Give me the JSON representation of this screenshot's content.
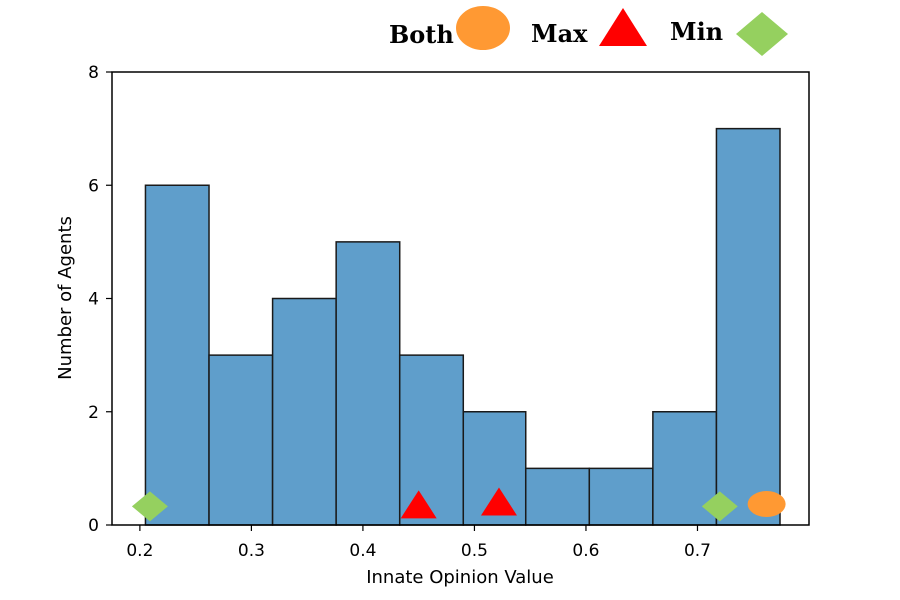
{
  "chart_data": {
    "type": "bar",
    "xlabel": "Innate Opinion Value",
    "ylabel": "Number of Agents",
    "xlim": [
      0.175,
      0.8
    ],
    "ylim": [
      0,
      8
    ],
    "x_ticks": [
      "0.2",
      "0.3",
      "0.4",
      "0.5",
      "0.6",
      "0.7"
    ],
    "y_ticks": [
      "0",
      "2",
      "4",
      "6",
      "8"
    ],
    "grid": false,
    "bar_color": "#5f9ecb",
    "bins": [
      {
        "x0": 0.205,
        "x1": 0.262,
        "count": 6
      },
      {
        "x0": 0.262,
        "x1": 0.319,
        "count": 3
      },
      {
        "x0": 0.319,
        "x1": 0.376,
        "count": 4
      },
      {
        "x0": 0.376,
        "x1": 0.433,
        "count": 5
      },
      {
        "x0": 0.433,
        "x1": 0.49,
        "count": 3
      },
      {
        "x0": 0.49,
        "x1": 0.546,
        "count": 2
      },
      {
        "x0": 0.546,
        "x1": 0.603,
        "count": 1
      },
      {
        "x0": 0.603,
        "x1": 0.66,
        "count": 1
      },
      {
        "x0": 0.66,
        "x1": 0.717,
        "count": 2
      },
      {
        "x0": 0.717,
        "x1": 0.774,
        "count": 7
      }
    ],
    "markers": [
      {
        "series": "Min",
        "x": 0.209,
        "y": 0.33
      },
      {
        "series": "Max",
        "x": 0.45,
        "y": 0.33
      },
      {
        "series": "Max",
        "x": 0.522,
        "y": 0.38
      },
      {
        "series": "Min",
        "x": 0.72,
        "y": 0.33
      },
      {
        "series": "Both",
        "x": 0.762,
        "y": 0.37
      }
    ],
    "legend": {
      "placement": "top",
      "entries": [
        {
          "label": "Both",
          "shape": "ellipse",
          "color": "#ff9933"
        },
        {
          "label": "Max",
          "shape": "triangle",
          "color": "#ff0000"
        },
        {
          "label": "Min",
          "shape": "diamond",
          "color": "#95d05f"
        }
      ]
    }
  }
}
